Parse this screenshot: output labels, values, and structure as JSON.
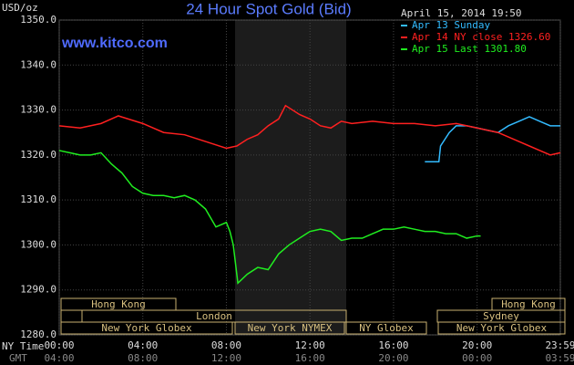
{
  "chart_data": {
    "type": "line",
    "title": "24 Hour Spot Gold (Bid)",
    "site": "www.kitco.com",
    "date": "April 15, 2014 19:50",
    "ylabel": "USD/oz",
    "ny_label": "NY Time",
    "gmt_label": "GMT",
    "xlim": [
      0,
      23.983
    ],
    "ylim": [
      1280,
      1350
    ],
    "yticks": [
      {
        "value": 1280,
        "label": "1280.0"
      },
      {
        "value": 1290,
        "label": "1290.0"
      },
      {
        "value": 1300,
        "label": "1300.0"
      },
      {
        "value": 1310,
        "label": "1310.0"
      },
      {
        "value": 1320,
        "label": "1320.0"
      },
      {
        "value": 1330,
        "label": "1330.0"
      },
      {
        "value": 1340,
        "label": "1340.0"
      },
      {
        "value": 1350,
        "label": "1350.0"
      }
    ],
    "xticks": [
      {
        "value": 0,
        "label": "00:00"
      },
      {
        "value": 4,
        "label": "04:00"
      },
      {
        "value": 8,
        "label": "08:00"
      },
      {
        "value": 12,
        "label": "12:00"
      },
      {
        "value": 16,
        "label": "16:00"
      },
      {
        "value": 20,
        "label": "20:00"
      },
      {
        "value": 23.983,
        "label": "23:59"
      }
    ],
    "gmt_labels": [
      "04:00",
      "08:00",
      "12:00",
      "16:00",
      "20:00",
      "00:00",
      "03:59"
    ],
    "grid": true,
    "sessions": [
      "Hong Kong",
      "London",
      "New York Globex",
      "New York NYMEX",
      "NY Globex",
      "Sydney",
      "Hong Kong",
      "New York Globex"
    ],
    "series": [
      {
        "name": "Apr 13 Sunday",
        "color": "#33bbff",
        "x": [
          17.5,
          18.17,
          18.25,
          18.67,
          19,
          19.5,
          20,
          20.5,
          21,
          21.5,
          22,
          22.5,
          23,
          23.5,
          23.983
        ],
        "values": [
          1318.5,
          1318.5,
          1322,
          1325,
          1326.5,
          1326.5,
          1326,
          1325.5,
          1325,
          1326.5,
          1327.5,
          1328.5,
          1327.5,
          1326.5,
          1326.5
        ]
      },
      {
        "name": "Apr 14 NY close 1326.60",
        "color": "#ff2020",
        "x": [
          0,
          1,
          2,
          2.83,
          4,
          5,
          6,
          7,
          8,
          8.5,
          9,
          9.5,
          10,
          10.5,
          10.83,
          11.5,
          12,
          12.5,
          13,
          13.5,
          14,
          15,
          16,
          17,
          18,
          19,
          20,
          21,
          22,
          22.5,
          23,
          23.5,
          23.983
        ],
        "values": [
          1326.5,
          1326,
          1327,
          1328.7,
          1327,
          1325,
          1324.5,
          1323,
          1321.5,
          1322,
          1323.5,
          1324.5,
          1326.5,
          1328,
          1331,
          1329,
          1328,
          1326.5,
          1326,
          1327.5,
          1327,
          1327.5,
          1327,
          1327,
          1326.5,
          1327,
          1326,
          1325,
          1323,
          1322,
          1321,
          1320,
          1320.5
        ]
      },
      {
        "name": "Apr 15 Last 1301.80",
        "color": "#20ee20",
        "x": [
          0,
          0.5,
          1,
          1.5,
          2,
          2.5,
          3,
          3.5,
          4,
          4.5,
          5,
          5.5,
          6,
          6.5,
          7,
          7.5,
          8,
          8.17,
          8.33,
          8.55,
          9,
          9.5,
          10,
          10.5,
          11,
          11.5,
          12,
          12.5,
          13,
          13.5,
          14,
          14.5,
          15,
          15.5,
          16,
          16.5,
          17,
          17.5,
          18,
          18.5,
          19,
          19.5,
          20,
          20.17
        ],
        "values": [
          1321,
          1320.5,
          1320,
          1320,
          1320.5,
          1318,
          1316,
          1313,
          1311.5,
          1311,
          1311,
          1310.5,
          1311,
          1310,
          1308,
          1304,
          1305,
          1303,
          1300,
          1291.5,
          1293.5,
          1295,
          1294.5,
          1298,
          1300,
          1301.5,
          1303,
          1303.5,
          1303,
          1301,
          1301.5,
          1301.5,
          1302.5,
          1303.5,
          1303.5,
          1304,
          1303.5,
          1303,
          1303,
          1302.5,
          1302.5,
          1301.5,
          1302,
          1302
        ]
      }
    ]
  }
}
